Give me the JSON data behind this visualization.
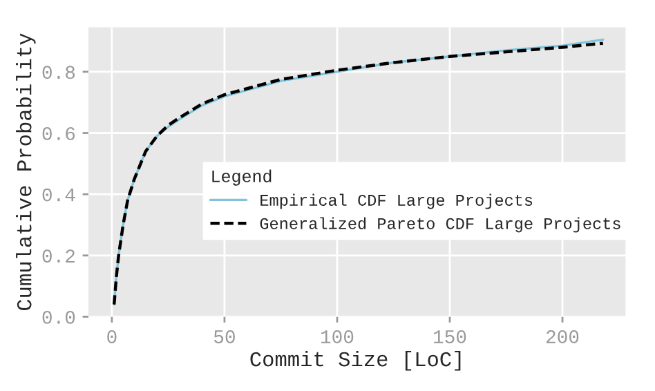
{
  "chart_data": {
    "type": "line",
    "xlabel": "Commit Size [LoC]",
    "ylabel": "Cumulative Probability",
    "legend_title": "Legend",
    "xlim": [
      -10.4,
      228
    ],
    "xticks": [
      0,
      50,
      100,
      150,
      200
    ],
    "ylim": [
      0,
      0.945
    ],
    "yticks": [
      {
        "value": 0,
        "label": "0.0"
      },
      0.2,
      0.4,
      0.6,
      0.8
    ],
    "grid": true,
    "legend": "right",
    "x": [
      1,
      2,
      3,
      5,
      7,
      10,
      15,
      20,
      25,
      30,
      40,
      50,
      75,
      100,
      125,
      150,
      175,
      200,
      218
    ],
    "series": [
      {
        "name": "Empirical CDF Large Projects",
        "color": "#7fc4dc",
        "line_style": "solid",
        "values": [
          0.04,
          0.13,
          0.2,
          0.3,
          0.38,
          0.45,
          0.54,
          0.59,
          0.62,
          0.645,
          0.69,
          0.72,
          0.77,
          0.8,
          0.83,
          0.85,
          0.87,
          0.885,
          0.905
        ]
      },
      {
        "name": "Generalized Pareto CDF Large Projects",
        "color": "#000000",
        "line_style": "dashed",
        "values": [
          0.04,
          0.13,
          0.2,
          0.3,
          0.38,
          0.45,
          0.54,
          0.59,
          0.625,
          0.65,
          0.695,
          0.725,
          0.775,
          0.805,
          0.83,
          0.85,
          0.865,
          0.88,
          0.893
        ]
      }
    ]
  }
}
